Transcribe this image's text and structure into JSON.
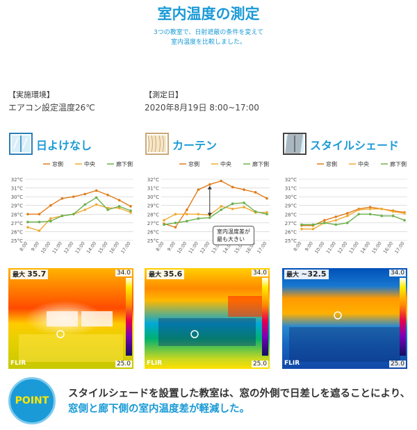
{
  "page": {
    "title": "室内温度の測定",
    "subtitle_line1": "3つの教室で、日射遮蔽の条件を変えて",
    "subtitle_line2": "室内温度を比較しました。",
    "env_label": "【実施環境】",
    "env_value": "エアコン設定温度26℃",
    "date_label": "【測定日】",
    "date_value": "2020年8月19日 8:00~17:00"
  },
  "panels": [
    {
      "name": "日よけなし",
      "temp_label": "最大",
      "temp_value": "35.7",
      "scale_max": "34.0",
      "scale_min": "25.0",
      "brand": "FLIR"
    },
    {
      "name": "カーテン",
      "temp_label": "最大",
      "temp_value": "35.6",
      "scale_max": "34.0",
      "scale_min": "25.0",
      "brand": "FLIR",
      "annotation_line1": "室内温度差が",
      "annotation_line2": "最も大きい"
    },
    {
      "name": "スタイルシェード",
      "temp_label": "最大",
      "temp_value": "~32.5",
      "scale_max": "34.0",
      "scale_min": "25.0",
      "brand": "FLIR"
    }
  ],
  "chart_data": [
    {
      "type": "line",
      "title": "",
      "x": [
        "8:00",
        "9:00",
        "10:00",
        "11:00",
        "12:00",
        "13:00",
        "14:00",
        "15:00",
        "16:00",
        "17:00"
      ],
      "yticks": [
        "25°C",
        "26°C",
        "27°C",
        "28°C",
        "29°C",
        "30°C",
        "31°C",
        "32°C"
      ],
      "ylim": [
        25,
        32
      ],
      "grid": true,
      "legend": "top",
      "series": [
        {
          "name": "窓側",
          "color": "#e07b18",
          "values": [
            28.0,
            28.0,
            29.0,
            29.8,
            30.0,
            30.3,
            30.7,
            30.2,
            29.6,
            28.9
          ]
        },
        {
          "name": "中央",
          "color": "#f0a830",
          "values": [
            26.5,
            26.1,
            27.5,
            27.8,
            28.0,
            28.5,
            29.1,
            28.7,
            28.7,
            28.2
          ]
        },
        {
          "name": "廊下側",
          "color": "#6ab04c",
          "values": [
            27.1,
            27.1,
            27.2,
            27.8,
            28.0,
            29.1,
            29.9,
            28.5,
            28.9,
            28.4
          ]
        }
      ]
    },
    {
      "type": "line",
      "title": "",
      "x": [
        "8:00",
        "9:00",
        "10:00",
        "11:00",
        "12:00",
        "13:00",
        "14:00",
        "15:00",
        "16:00",
        "17:00"
      ],
      "yticks": [
        "25°C",
        "26°C",
        "27°C",
        "28°C",
        "29°C",
        "30°C",
        "31°C",
        "32°C"
      ],
      "ylim": [
        25,
        32
      ],
      "grid": true,
      "legend": "top",
      "series": [
        {
          "name": "窓側",
          "color": "#e07b18",
          "values": [
            26.9,
            26.5,
            28.5,
            30.8,
            31.4,
            31.8,
            31.1,
            30.8,
            30.5,
            29.8
          ]
        },
        {
          "name": "中央",
          "color": "#f0a830",
          "values": [
            27.3,
            28.0,
            28.0,
            28.0,
            27.9,
            28.9,
            28.6,
            28.8,
            28.2,
            28.2
          ]
        },
        {
          "name": "廊下側",
          "color": "#6ab04c",
          "values": [
            26.8,
            27.0,
            27.2,
            27.5,
            27.6,
            28.5,
            29.2,
            29.3,
            28.3,
            28.0
          ]
        }
      ]
    },
    {
      "type": "line",
      "title": "",
      "x": [
        "8:00",
        "9:00",
        "10:00",
        "11:00",
        "12:00",
        "13:00",
        "14:00",
        "15:00",
        "16:00",
        "17:00"
      ],
      "yticks": [
        "25°C",
        "26°C",
        "27°C",
        "28°C",
        "29°C",
        "30°C",
        "31°C",
        "32°C"
      ],
      "ylim": [
        25,
        32
      ],
      "grid": true,
      "legend": "top",
      "series": [
        {
          "name": "窓側",
          "color": "#e07b18",
          "values": [
            26.7,
            26.7,
            27.3,
            27.7,
            28.1,
            28.6,
            28.8,
            28.6,
            28.4,
            28.2
          ]
        },
        {
          "name": "中央",
          "color": "#f0a830",
          "values": [
            26.3,
            26.3,
            27.0,
            27.3,
            27.8,
            28.5,
            28.6,
            28.6,
            28.3,
            28.1
          ]
        },
        {
          "name": "廊下側",
          "color": "#6ab04c",
          "values": [
            26.8,
            26.8,
            27.0,
            26.8,
            27.0,
            28.0,
            28.0,
            27.8,
            27.8,
            27.3
          ]
        }
      ]
    }
  ],
  "point": {
    "badge": "POINT",
    "text_part1": "スタイルシェードを設置した教室は、窓の外側で日差しを遮ることにより、",
    "text_highlight": "窓側と廊下側の室内温度差が軽減した。"
  }
}
